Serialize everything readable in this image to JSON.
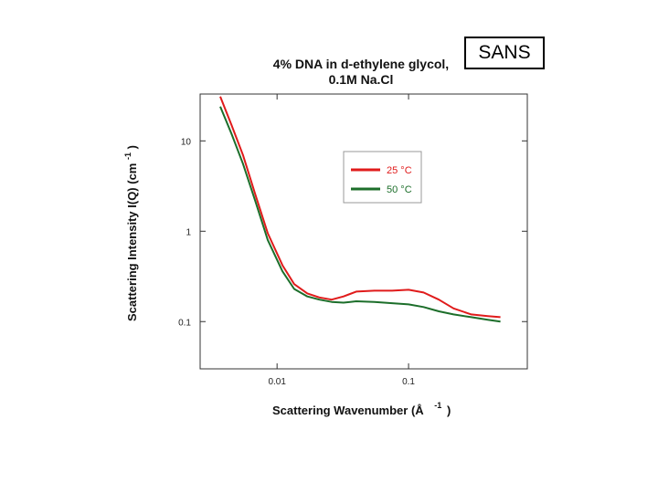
{
  "header": {
    "sans_label": "SANS"
  },
  "chart_data": {
    "type": "line",
    "title_line1": "4% DNA in d-ethylene glycol,",
    "title_line2": "0.1M Na.Cl",
    "xlabel": "Scattering Wavenumber (Å",
    "xlabel_superscript": "-1",
    "xlabel_suffix": ")",
    "ylabel": "Scattering Intensity I(Q) (cm",
    "ylabel_superscript": "-1",
    "ylabel_suffix": ")",
    "xscale": "log",
    "yscale": "log",
    "xlim": [
      0.0026,
      0.8
    ],
    "ylim": [
      0.03,
      33
    ],
    "xticks": [
      {
        "value": 0.01,
        "label": "0.01"
      },
      {
        "value": 0.1,
        "label": "0.1"
      }
    ],
    "yticks": [
      {
        "value": 0.1,
        "label": "0.1"
      },
      {
        "value": 1,
        "label": "1"
      },
      {
        "value": 10,
        "label": "10"
      }
    ],
    "legend_position": "top-right",
    "series": [
      {
        "name": "25 °C",
        "color": "#e01b1b",
        "points": [
          [
            0.0037,
            31
          ],
          [
            0.0045,
            15
          ],
          [
            0.0055,
            7
          ],
          [
            0.0068,
            2.6
          ],
          [
            0.0085,
            0.95
          ],
          [
            0.011,
            0.42
          ],
          [
            0.0135,
            0.26
          ],
          [
            0.017,
            0.205
          ],
          [
            0.021,
            0.185
          ],
          [
            0.026,
            0.175
          ],
          [
            0.032,
            0.19
          ],
          [
            0.04,
            0.215
          ],
          [
            0.055,
            0.22
          ],
          [
            0.075,
            0.22
          ],
          [
            0.1,
            0.225
          ],
          [
            0.13,
            0.21
          ],
          [
            0.17,
            0.175
          ],
          [
            0.22,
            0.14
          ],
          [
            0.3,
            0.12
          ],
          [
            0.4,
            0.115
          ],
          [
            0.5,
            0.112
          ]
        ]
      },
      {
        "name": "50 °C",
        "color": "#1c6e2a",
        "points": [
          [
            0.0037,
            24
          ],
          [
            0.0045,
            12
          ],
          [
            0.0055,
            5.6
          ],
          [
            0.0068,
            2.2
          ],
          [
            0.0085,
            0.8
          ],
          [
            0.011,
            0.36
          ],
          [
            0.0135,
            0.23
          ],
          [
            0.017,
            0.19
          ],
          [
            0.021,
            0.175
          ],
          [
            0.026,
            0.165
          ],
          [
            0.032,
            0.162
          ],
          [
            0.04,
            0.168
          ],
          [
            0.055,
            0.165
          ],
          [
            0.075,
            0.16
          ],
          [
            0.1,
            0.155
          ],
          [
            0.13,
            0.145
          ],
          [
            0.17,
            0.13
          ],
          [
            0.22,
            0.12
          ],
          [
            0.3,
            0.112
          ],
          [
            0.4,
            0.105
          ],
          [
            0.5,
            0.1
          ]
        ]
      }
    ]
  }
}
